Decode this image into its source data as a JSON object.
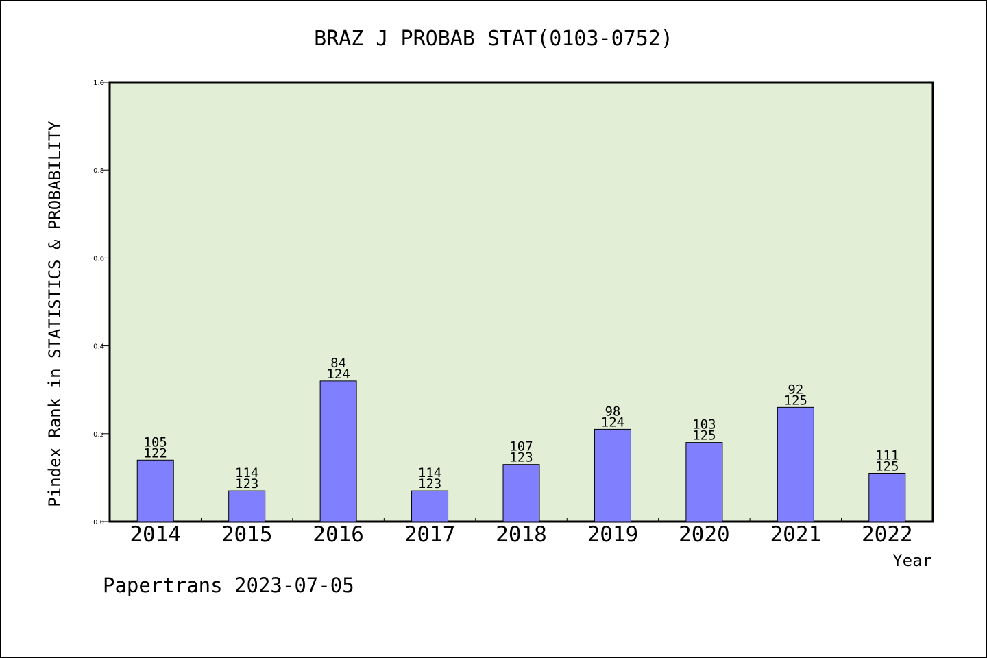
{
  "chart_data": {
    "type": "bar",
    "title": "BRAZ J PROBAB STAT(0103-0752)",
    "xlabel": "Year",
    "ylabel": "Pindex Rank in STATISTICS & PROBABILITY",
    "ylim": [
      0,
      1.0
    ],
    "yticks": [
      "0.0",
      "0.2",
      "0.4",
      "0.6",
      "0.8",
      "1.0"
    ],
    "categories": [
      "2014",
      "2015",
      "2016",
      "2017",
      "2018",
      "2019",
      "2020",
      "2021",
      "2022"
    ],
    "values": [
      0.14,
      0.07,
      0.32,
      0.07,
      0.13,
      0.21,
      0.18,
      0.26,
      0.11
    ],
    "rank_labels": [
      "105",
      "114",
      "84",
      "114",
      "107",
      "98",
      "103",
      "92",
      "111"
    ],
    "total_labels": [
      "122",
      "123",
      "124",
      "123",
      "123",
      "124",
      "125",
      "125",
      "125"
    ],
    "footer": "Papertrans 2023-07-05",
    "colors": {
      "plot_background": "#e2efd6",
      "bar_fill": "#8080ff",
      "bar_stroke": "#000000",
      "axis": "#000000"
    }
  }
}
